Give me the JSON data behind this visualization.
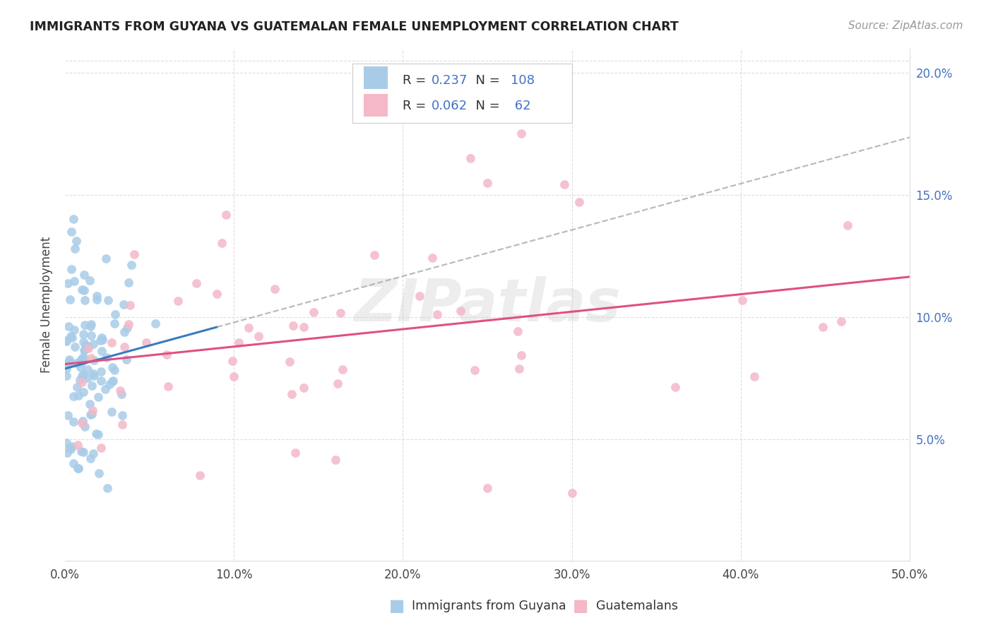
{
  "title": "IMMIGRANTS FROM GUYANA VS GUATEMALAN FEMALE UNEMPLOYMENT CORRELATION CHART",
  "source": "Source: ZipAtlas.com",
  "ylabel": "Female Unemployment",
  "blue_label": "Immigrants from Guyana",
  "pink_label": "Guatemalans",
  "blue_R": "0.237",
  "blue_N": "108",
  "pink_R": "0.062",
  "pink_N": "62",
  "blue_color": "#a8cce8",
  "pink_color": "#f4b8c8",
  "blue_line_color": "#3a7abf",
  "pink_line_color": "#e05080",
  "dash_color": "#aaaaaa",
  "legend_text_color": "#4472C4",
  "right_ytick_labels": [
    "5.0%",
    "10.0%",
    "15.0%",
    "20.0%"
  ],
  "right_ytick_values": [
    0.05,
    0.1,
    0.15,
    0.2
  ],
  "xlim": [
    0.0,
    0.5
  ],
  "ylim": [
    0.0,
    0.21
  ],
  "xtick_vals": [
    0.0,
    0.1,
    0.2,
    0.3,
    0.4,
    0.5
  ],
  "xtick_labels": [
    "0.0%",
    "10.0%",
    "20.0%",
    "30.0%",
    "40.0%",
    "50.0%"
  ],
  "watermark": "ZIPatlas",
  "background_color": "#ffffff",
  "grid_color": "#dddddd"
}
